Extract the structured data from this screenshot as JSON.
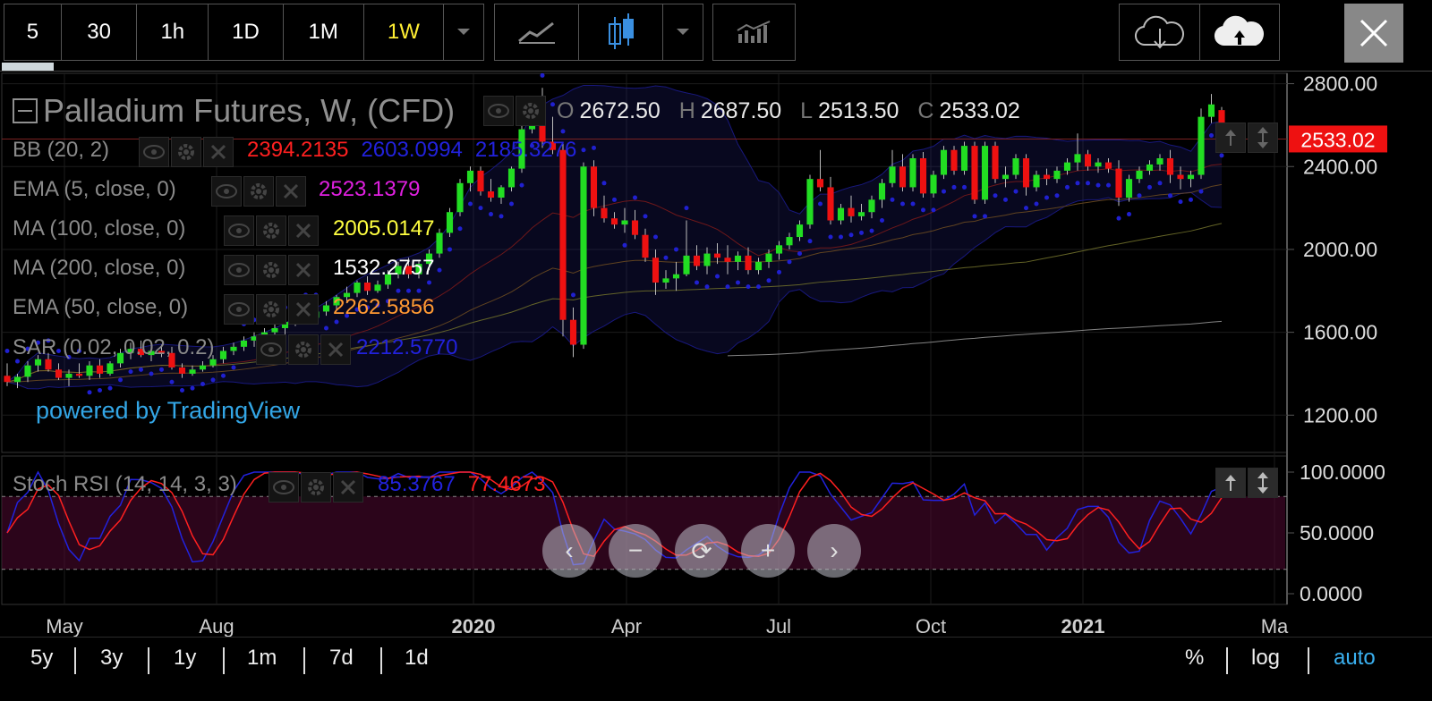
{
  "toolbar": {
    "intervals": [
      "5",
      "30",
      "1h",
      "1D",
      "1M",
      "1W"
    ],
    "selected_interval": "1W"
  },
  "icons": [
    "chevron-down-icon",
    "line-chart-icon",
    "candlestick-icon",
    "chevron-down-icon",
    "indicators-icon",
    "cloud-download-icon",
    "cloud-upload-icon",
    "close-icon"
  ],
  "header": {
    "title": "Palladium Futures, W, (CFD)",
    "ohlc": {
      "O": "2672.50",
      "H": "2687.50",
      "L": "2513.50",
      "C": "2533.02"
    }
  },
  "legends": [
    {
      "name": "BB (20, 2)",
      "values": [
        {
          "v": "2394.2135",
          "color": "#ff2020"
        },
        {
          "v": "2603.0994",
          "color": "#2222dd"
        },
        {
          "v": "2185.3276",
          "color": "#2222dd"
        }
      ]
    },
    {
      "name": "EMA (5, close, 0)",
      "values": [
        {
          "v": "2523.1379",
          "color": "#e020e0"
        }
      ]
    },
    {
      "name": "MA (100, close, 0)",
      "values": [
        {
          "v": "2005.0147",
          "color": "#ffff40"
        }
      ]
    },
    {
      "name": "MA (200, close, 0)",
      "values": [
        {
          "v": "1532.2757",
          "color": "#ffffff"
        }
      ]
    },
    {
      "name": "EMA (50, close, 0)",
      "values": [
        {
          "v": "2262.5856",
          "color": "#ff9933"
        }
      ]
    },
    {
      "name": "SAR (0.02, 0.02, 0.2)",
      "values": [
        {
          "v": "2212.5770",
          "color": "#2222dd"
        }
      ]
    }
  ],
  "powered_by": "powered by TradingView",
  "price_badge": "2533.02",
  "stoch": {
    "name": "Stoch RSI (14, 14, 3, 3)",
    "k": "85.3767",
    "d": "77.4673",
    "k_color": "#2222dd",
    "d_color": "#ff2020",
    "y_ticks": [
      "100.0000",
      "50.0000",
      "0.0000"
    ]
  },
  "nav_buttons": [
    "‹",
    "−",
    "⟳",
    "+",
    "›"
  ],
  "bottom": {
    "ranges": [
      "5y",
      "3y",
      "1y",
      "1m",
      "7d",
      "1d"
    ],
    "scale": [
      "%",
      "log",
      "auto"
    ]
  },
  "chart_data": {
    "type": "candlestick",
    "title": "Palladium Futures, W, (CFD)",
    "ylim": [
      1020,
      2850
    ],
    "y_ticks": [
      1200,
      1600,
      2000,
      2400,
      2800
    ],
    "x_ticks": [
      "May",
      "Aug",
      "2020",
      "Apr",
      "Jul",
      "Oct",
      "2021",
      "Ma"
    ],
    "last_price": 2533.02,
    "candles": [
      [
        1390,
        1450,
        1340,
        1360
      ],
      [
        1360,
        1400,
        1330,
        1385
      ],
      [
        1385,
        1460,
        1360,
        1440
      ],
      [
        1440,
        1490,
        1410,
        1470
      ],
      [
        1470,
        1500,
        1410,
        1420
      ],
      [
        1420,
        1450,
        1370,
        1380
      ],
      [
        1380,
        1420,
        1340,
        1400
      ],
      [
        1400,
        1450,
        1380,
        1390
      ],
      [
        1390,
        1460,
        1370,
        1440
      ],
      [
        1440,
        1470,
        1380,
        1400
      ],
      [
        1400,
        1460,
        1390,
        1450
      ],
      [
        1450,
        1520,
        1430,
        1500
      ],
      [
        1500,
        1550,
        1470,
        1520
      ],
      [
        1520,
        1560,
        1480,
        1490
      ],
      [
        1490,
        1530,
        1460,
        1510
      ],
      [
        1510,
        1540,
        1480,
        1500
      ],
      [
        1500,
        1530,
        1420,
        1430
      ],
      [
        1430,
        1450,
        1380,
        1400
      ],
      [
        1400,
        1440,
        1390,
        1420
      ],
      [
        1420,
        1460,
        1410,
        1440
      ],
      [
        1440,
        1490,
        1430,
        1470
      ],
      [
        1470,
        1530,
        1450,
        1510
      ],
      [
        1510,
        1550,
        1490,
        1530
      ],
      [
        1530,
        1580,
        1510,
        1560
      ],
      [
        1560,
        1600,
        1530,
        1580
      ],
      [
        1580,
        1620,
        1560,
        1600
      ],
      [
        1600,
        1640,
        1580,
        1620
      ],
      [
        1620,
        1660,
        1590,
        1650
      ],
      [
        1650,
        1700,
        1630,
        1690
      ],
      [
        1690,
        1720,
        1650,
        1670
      ],
      [
        1670,
        1720,
        1660,
        1700
      ],
      [
        1700,
        1750,
        1680,
        1730
      ],
      [
        1730,
        1780,
        1710,
        1770
      ],
      [
        1770,
        1820,
        1740,
        1790
      ],
      [
        1790,
        1850,
        1770,
        1840
      ],
      [
        1840,
        1870,
        1780,
        1800
      ],
      [
        1800,
        1850,
        1790,
        1830
      ],
      [
        1830,
        1900,
        1810,
        1880
      ],
      [
        1880,
        1940,
        1860,
        1920
      ],
      [
        1920,
        1960,
        1860,
        1880
      ],
      [
        1880,
        1950,
        1860,
        1930
      ],
      [
        1930,
        2000,
        1900,
        1980
      ],
      [
        1980,
        2100,
        1960,
        2080
      ],
      [
        2080,
        2200,
        2060,
        2180
      ],
      [
        2180,
        2340,
        2160,
        2320
      ],
      [
        2320,
        2400,
        2280,
        2380
      ],
      [
        2380,
        2400,
        2260,
        2280
      ],
      [
        2280,
        2340,
        2230,
        2250
      ],
      [
        2250,
        2310,
        2220,
        2300
      ],
      [
        2300,
        2400,
        2280,
        2390
      ],
      [
        2390,
        2600,
        2370,
        2580
      ],
      [
        2580,
        2740,
        2560,
        2700
      ],
      [
        2700,
        2780,
        2490,
        2520
      ],
      [
        2520,
        2640,
        2460,
        2480
      ],
      [
        2480,
        2510,
        1580,
        1660
      ],
      [
        1660,
        1720,
        1480,
        1540
      ],
      [
        1540,
        2420,
        1520,
        2400
      ],
      [
        2400,
        2430,
        2160,
        2200
      ],
      [
        2200,
        2260,
        2130,
        2150
      ],
      [
        2150,
        2180,
        2100,
        2120
      ],
      [
        2120,
        2200,
        2080,
        2140
      ],
      [
        2140,
        2190,
        2050,
        2070
      ],
      [
        2070,
        2100,
        1940,
        1960
      ],
      [
        1960,
        2000,
        1780,
        1840
      ],
      [
        1840,
        1900,
        1810,
        1860
      ],
      [
        1860,
        1940,
        1800,
        1880
      ],
      [
        1880,
        2140,
        1870,
        1970
      ],
      [
        1970,
        2020,
        1900,
        1920
      ],
      [
        1920,
        2010,
        1880,
        1980
      ],
      [
        1980,
        2030,
        1930,
        1960
      ],
      [
        1960,
        2020,
        1880,
        1940
      ],
      [
        1940,
        1990,
        1900,
        1970
      ],
      [
        1970,
        2010,
        1880,
        1900
      ],
      [
        1900,
        1960,
        1880,
        1940
      ],
      [
        1940,
        2000,
        1910,
        1980
      ],
      [
        1980,
        2040,
        1950,
        2020
      ],
      [
        2020,
        2080,
        2000,
        2060
      ],
      [
        2060,
        2140,
        2040,
        2120
      ],
      [
        2120,
        2360,
        2100,
        2340
      ],
      [
        2340,
        2480,
        2280,
        2300
      ],
      [
        2300,
        2350,
        2120,
        2140
      ],
      [
        2140,
        2220,
        2120,
        2200
      ],
      [
        2200,
        2260,
        2130,
        2160
      ],
      [
        2160,
        2220,
        2140,
        2180
      ],
      [
        2180,
        2260,
        2150,
        2240
      ],
      [
        2240,
        2340,
        2200,
        2320
      ],
      [
        2320,
        2480,
        2300,
        2400
      ],
      [
        2400,
        2460,
        2280,
        2300
      ],
      [
        2300,
        2460,
        2280,
        2440
      ],
      [
        2440,
        2470,
        2250,
        2270
      ],
      [
        2270,
        2380,
        2250,
        2360
      ],
      [
        2360,
        2500,
        2340,
        2480
      ],
      [
        2480,
        2500,
        2360,
        2380
      ],
      [
        2380,
        2520,
        2360,
        2500
      ],
      [
        2500,
        2520,
        2220,
        2240
      ],
      [
        2240,
        2520,
        2220,
        2500
      ],
      [
        2500,
        2520,
        2320,
        2340
      ],
      [
        2340,
        2400,
        2300,
        2360
      ],
      [
        2360,
        2460,
        2340,
        2440
      ],
      [
        2440,
        2460,
        2260,
        2300
      ],
      [
        2300,
        2380,
        2280,
        2360
      ],
      [
        2360,
        2390,
        2310,
        2340
      ],
      [
        2340,
        2400,
        2320,
        2380
      ],
      [
        2380,
        2440,
        2360,
        2420
      ],
      [
        2420,
        2560,
        2380,
        2460
      ],
      [
        2460,
        2480,
        2380,
        2400
      ],
      [
        2400,
        2440,
        2370,
        2420
      ],
      [
        2420,
        2440,
        2370,
        2390
      ],
      [
        2390,
        2430,
        2210,
        2250
      ],
      [
        2250,
        2360,
        2230,
        2340
      ],
      [
        2340,
        2400,
        2320,
        2380
      ],
      [
        2380,
        2430,
        2360,
        2410
      ],
      [
        2410,
        2460,
        2380,
        2440
      ],
      [
        2440,
        2480,
        2320,
        2360
      ],
      [
        2360,
        2400,
        2290,
        2340
      ],
      [
        2340,
        2380,
        2300,
        2360
      ],
      [
        2360,
        2680,
        2340,
        2640
      ],
      [
        2640,
        2750,
        2610,
        2700
      ],
      [
        2672.5,
        2687.5,
        2513.5,
        2533.02
      ]
    ]
  }
}
